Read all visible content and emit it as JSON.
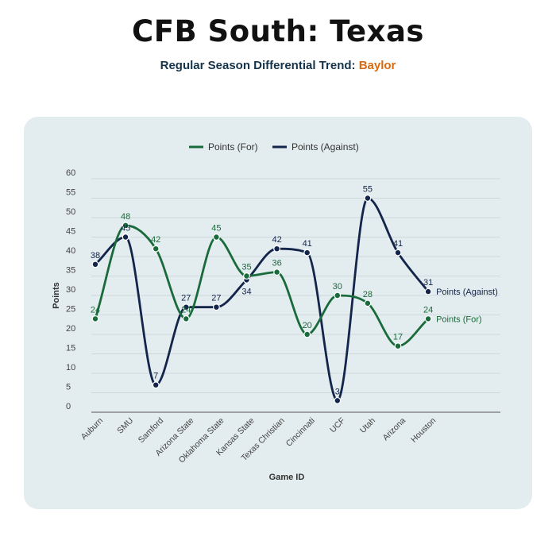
{
  "header": {
    "title": "CFB South: Texas",
    "subtitle_prefix": "Regular Season Differential Trend: ",
    "subtitle_team": "Baylor"
  },
  "colors": {
    "for": "#1a6b3c",
    "against": "#13254a",
    "team": "#d9690f"
  },
  "chart_data": {
    "type": "line",
    "title": "CFB South: Texas",
    "subtitle": "Regular Season Differential Trend: Baylor",
    "xlabel": "Game ID",
    "ylabel": "Points",
    "ylim": [
      0,
      60
    ],
    "yticks": [
      0,
      5,
      10,
      15,
      20,
      25,
      30,
      35,
      40,
      45,
      50,
      55,
      60
    ],
    "categories": [
      "Auburn",
      "SMU",
      "Samford",
      "Arizona State",
      "Oklahoma State",
      "Kansas State",
      "Texas Christian",
      "Cincinnati",
      "UCF",
      "Utah",
      "Arizona",
      "Houston"
    ],
    "series": [
      {
        "name": "Points (For)",
        "color": "#1a6b3c",
        "values": [
          24,
          48,
          42,
          24,
          45,
          35,
          36,
          20,
          30,
          28,
          17,
          24
        ]
      },
      {
        "name": "Points (Against)",
        "color": "#13254a",
        "values": [
          38,
          45,
          7,
          27,
          27,
          34,
          42,
          41,
          3,
          55,
          41,
          31
        ]
      }
    ],
    "legend": {
      "items": [
        "Points (For)",
        "Points (Against)"
      ],
      "placement": "top-center"
    },
    "end_labels": [
      "Points (For)",
      "Points (Against)"
    ]
  }
}
